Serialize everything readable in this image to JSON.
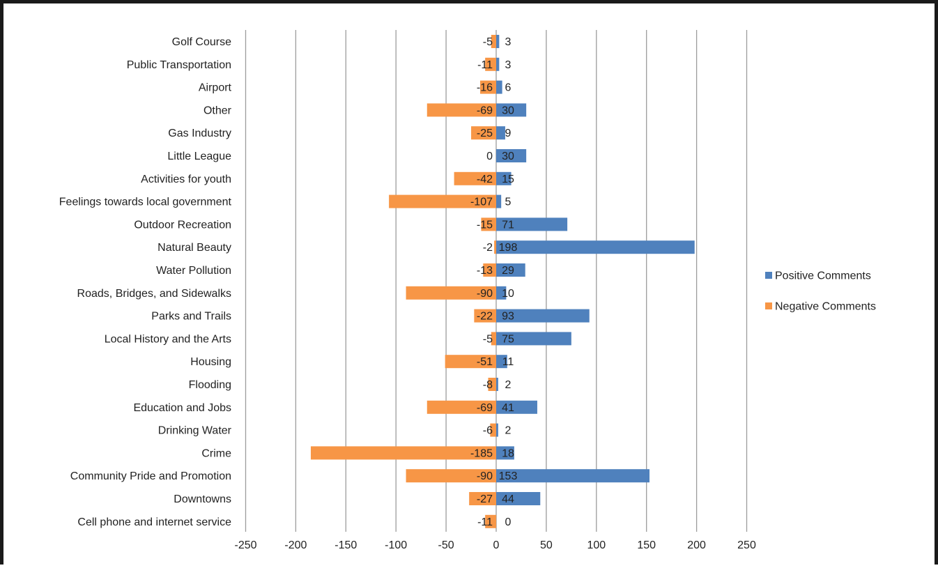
{
  "chart_data": {
    "type": "bar",
    "orientation": "horizontal",
    "title": "",
    "xlabel": "",
    "ylabel": "",
    "xlim": [
      -250,
      250
    ],
    "x_ticks": [
      -250,
      -200,
      -150,
      -100,
      -50,
      0,
      50,
      100,
      150,
      200,
      250
    ],
    "grid": "vertical",
    "legend_position": "right",
    "categories": [
      "Golf Course",
      "Public Transportation",
      "Airport",
      "Other",
      "Gas Industry",
      "Little League",
      "Activities for youth",
      "Feelings towards local government",
      "Outdoor Recreation",
      "Natural Beauty",
      "Water Pollution",
      "Roads, Bridges, and Sidewalks",
      "Parks and Trails",
      "Local History and the Arts",
      "Housing",
      "Flooding",
      "Education and Jobs",
      "Drinking Water",
      "Crime",
      "Community Pride and Promotion",
      "Downtowns",
      "Cell phone and internet service"
    ],
    "series": [
      {
        "name": "Positive Comments",
        "color": "#4f81bd",
        "values": [
          3,
          3,
          6,
          30,
          9,
          30,
          15,
          5,
          71,
          198,
          29,
          10,
          93,
          75,
          11,
          2,
          41,
          2,
          18,
          153,
          44,
          0
        ]
      },
      {
        "name": "Negative Comments",
        "color": "#f79646",
        "values": [
          -5,
          -11,
          -16,
          -69,
          -25,
          0,
          -42,
          -107,
          -15,
          -2,
          -13,
          -90,
          -22,
          -5,
          -51,
          -8,
          -69,
          -6,
          -185,
          -90,
          -27,
          -11
        ]
      }
    ]
  }
}
